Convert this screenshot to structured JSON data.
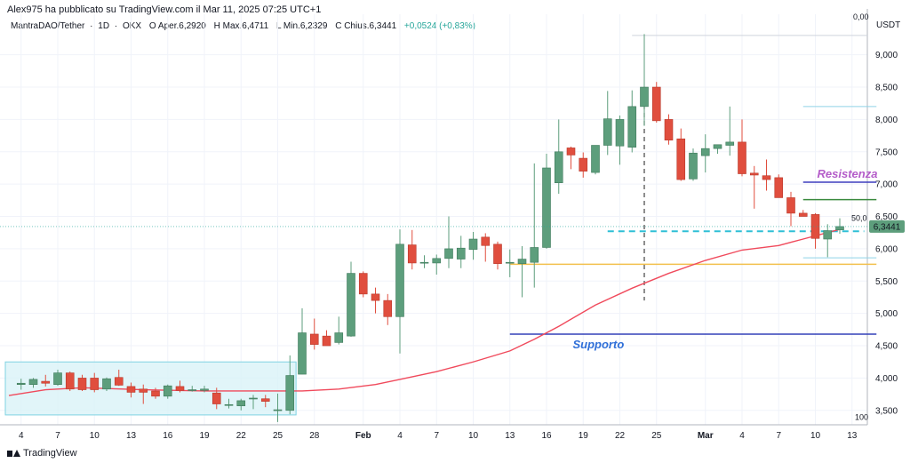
{
  "header": {
    "published": "Alex975 ha pubblicato su TradingView.com il Mar 11, 2025 07:25 UTC+1"
  },
  "symbol_bar": {
    "symbol": "MantraDAO/Tether",
    "interval": "1D",
    "exchange": "OKX",
    "open_label": "O",
    "open_value": "Aper.6,2920",
    "high_label": "H",
    "high_value": "Max.6,4711",
    "low_label": "L",
    "low_value": "Min.6,2329",
    "close_label": "C",
    "close_value": "Chius.6,3441",
    "change_value": "+0,0524 (+0,83%)"
  },
  "footer": {
    "brand": "TradingView"
  },
  "colors": {
    "up": "#5d9e7c",
    "down": "#e04e3e",
    "ma": "#f04a5c",
    "resistance_text": "#b45cc9",
    "resistance_line": "#3d3dbd",
    "support_text": "#2f6fd8",
    "support_line": "#3340b8",
    "yellow_line": "#f2c04e",
    "green_line": "#3a8a3e",
    "cyan_dash": "#2fbfd6",
    "box_fill": "#d9f3f7",
    "box_stroke": "#7fd2e2"
  },
  "chart_data": {
    "type": "candlestick",
    "title": "MantraDAO/Tether · 1D · OKX",
    "y_axis_unit": "USDT",
    "ylim": [
      3250,
      9600
    ],
    "y_ticks": [
      "3,500",
      "4,000",
      "4,500",
      "5,000",
      "5,500",
      "6,000",
      "6,500",
      "7,000",
      "7,500",
      "8,000",
      "8,500",
      "9,000"
    ],
    "y_tick_values": [
      3500,
      4000,
      4500,
      5000,
      5500,
      6000,
      6500,
      7000,
      7500,
      8000,
      8500,
      9000
    ],
    "x_ticks": [
      "4",
      "7",
      "10",
      "13",
      "16",
      "19",
      "22",
      "25",
      "28",
      "Feb",
      "4",
      "7",
      "10",
      "13",
      "16",
      "19",
      "22",
      "25",
      "Mar",
      "4",
      "7",
      "10",
      "13"
    ],
    "x_tick_bold": [
      "Feb",
      "Mar"
    ],
    "x_tick_index": [
      0,
      3,
      6,
      9,
      12,
      15,
      18,
      21,
      24,
      28,
      31,
      34,
      37,
      40,
      43,
      46,
      49,
      52,
      56,
      59,
      62,
      65,
      68
    ],
    "first_index": -1,
    "last_index": 70,
    "candles": [
      {
        "o": 3900,
        "h": 3990,
        "l": 3820,
        "c": 3920
      },
      {
        "o": 3900,
        "h": 4000,
        "l": 3850,
        "c": 3980
      },
      {
        "o": 3950,
        "h": 4050,
        "l": 3870,
        "c": 3920
      },
      {
        "o": 3900,
        "h": 4130,
        "l": 3880,
        "c": 4080
      },
      {
        "o": 4080,
        "h": 4100,
        "l": 3800,
        "c": 3830
      },
      {
        "o": 4000,
        "h": 4050,
        "l": 3800,
        "c": 3820
      },
      {
        "o": 4000,
        "h": 4080,
        "l": 3780,
        "c": 3820
      },
      {
        "o": 3830,
        "h": 4010,
        "l": 3800,
        "c": 3990
      },
      {
        "o": 4010,
        "h": 4130,
        "l": 3880,
        "c": 3890
      },
      {
        "o": 3870,
        "h": 3930,
        "l": 3700,
        "c": 3780
      },
      {
        "o": 3830,
        "h": 3900,
        "l": 3600,
        "c": 3780
      },
      {
        "o": 3800,
        "h": 3850,
        "l": 3680,
        "c": 3720
      },
      {
        "o": 3720,
        "h": 3900,
        "l": 3680,
        "c": 3880
      },
      {
        "o": 3870,
        "h": 3960,
        "l": 3780,
        "c": 3810
      },
      {
        "o": 3820,
        "h": 3880,
        "l": 3790,
        "c": 3820
      },
      {
        "o": 3810,
        "h": 3880,
        "l": 3780,
        "c": 3830
      },
      {
        "o": 3770,
        "h": 3850,
        "l": 3520,
        "c": 3600
      },
      {
        "o": 3580,
        "h": 3680,
        "l": 3530,
        "c": 3590
      },
      {
        "o": 3570,
        "h": 3680,
        "l": 3500,
        "c": 3650
      },
      {
        "o": 3680,
        "h": 3740,
        "l": 3520,
        "c": 3690
      },
      {
        "o": 3680,
        "h": 3740,
        "l": 3550,
        "c": 3640
      },
      {
        "o": 3510,
        "h": 3760,
        "l": 3320,
        "c": 3510
      },
      {
        "o": 3500,
        "h": 4350,
        "l": 3440,
        "c": 4040
      },
      {
        "o": 4060,
        "h": 5080,
        "l": 4060,
        "c": 4700
      },
      {
        "o": 4680,
        "h": 4920,
        "l": 4440,
        "c": 4520
      },
      {
        "o": 4650,
        "h": 4740,
        "l": 4500,
        "c": 4500
      },
      {
        "o": 4550,
        "h": 4950,
        "l": 4520,
        "c": 4700
      },
      {
        "o": 4650,
        "h": 5800,
        "l": 4640,
        "c": 5620
      },
      {
        "o": 5620,
        "h": 5650,
        "l": 5250,
        "c": 5300
      },
      {
        "o": 5300,
        "h": 5400,
        "l": 5000,
        "c": 5200
      },
      {
        "o": 5200,
        "h": 5300,
        "l": 4820,
        "c": 4950
      },
      {
        "o": 4950,
        "h": 6300,
        "l": 4380,
        "c": 6070
      },
      {
        "o": 6060,
        "h": 6290,
        "l": 5680,
        "c": 5780
      },
      {
        "o": 5780,
        "h": 5900,
        "l": 5700,
        "c": 5790
      },
      {
        "o": 5780,
        "h": 5910,
        "l": 5600,
        "c": 5850
      },
      {
        "o": 5850,
        "h": 6500,
        "l": 5700,
        "c": 6000
      },
      {
        "o": 5840,
        "h": 6200,
        "l": 5700,
        "c": 6010
      },
      {
        "o": 5990,
        "h": 6260,
        "l": 5830,
        "c": 6150
      },
      {
        "o": 6180,
        "h": 6240,
        "l": 5800,
        "c": 6050
      },
      {
        "o": 6070,
        "h": 6110,
        "l": 5680,
        "c": 5770
      },
      {
        "o": 5780,
        "h": 5990,
        "l": 5560,
        "c": 5790
      },
      {
        "o": 5770,
        "h": 6040,
        "l": 5250,
        "c": 5840
      },
      {
        "o": 5790,
        "h": 7320,
        "l": 5400,
        "c": 6020
      },
      {
        "o": 6020,
        "h": 7470,
        "l": 6000,
        "c": 7250
      },
      {
        "o": 7020,
        "h": 8000,
        "l": 6850,
        "c": 7500
      },
      {
        "o": 7560,
        "h": 7580,
        "l": 7230,
        "c": 7450
      },
      {
        "o": 7400,
        "h": 7490,
        "l": 7100,
        "c": 7200
      },
      {
        "o": 7180,
        "h": 7600,
        "l": 7150,
        "c": 7600
      },
      {
        "o": 7600,
        "h": 8440,
        "l": 7450,
        "c": 8010
      },
      {
        "o": 7590,
        "h": 8060,
        "l": 7300,
        "c": 8000
      },
      {
        "o": 7570,
        "h": 8450,
        "l": 7490,
        "c": 8200
      },
      {
        "o": 8200,
        "h": 9320,
        "l": 7900,
        "c": 8500
      },
      {
        "o": 8500,
        "h": 8580,
        "l": 7950,
        "c": 7980
      },
      {
        "o": 8000,
        "h": 8080,
        "l": 7610,
        "c": 7680
      },
      {
        "o": 7700,
        "h": 7860,
        "l": 7050,
        "c": 7070
      },
      {
        "o": 7080,
        "h": 7550,
        "l": 7050,
        "c": 7480
      },
      {
        "o": 7440,
        "h": 7770,
        "l": 7180,
        "c": 7550
      },
      {
        "o": 7550,
        "h": 7610,
        "l": 7470,
        "c": 7610
      },
      {
        "o": 7600,
        "h": 8200,
        "l": 7440,
        "c": 7650
      },
      {
        "o": 7650,
        "h": 8000,
        "l": 7120,
        "c": 7160
      },
      {
        "o": 7170,
        "h": 7280,
        "l": 6620,
        "c": 7140
      },
      {
        "o": 7130,
        "h": 7380,
        "l": 6900,
        "c": 7070
      },
      {
        "o": 7100,
        "h": 7150,
        "l": 6790,
        "c": 6790
      },
      {
        "o": 6790,
        "h": 6880,
        "l": 6350,
        "c": 6550
      },
      {
        "o": 6550,
        "h": 6600,
        "l": 6500,
        "c": 6500
      },
      {
        "o": 6530,
        "h": 6550,
        "l": 6000,
        "c": 6160
      },
      {
        "o": 6150,
        "h": 6380,
        "l": 5870,
        "c": 6280
      },
      {
        "o": 6292,
        "h": 6471,
        "l": 6233,
        "c": 6344
      }
    ],
    "ma_series": [
      [
        -1,
        3730
      ],
      [
        2,
        3820
      ],
      [
        5,
        3850
      ],
      [
        10,
        3820
      ],
      [
        15,
        3800
      ],
      [
        20,
        3800
      ],
      [
        23,
        3800
      ],
      [
        26,
        3830
      ],
      [
        29,
        3900
      ],
      [
        31,
        3980
      ],
      [
        34,
        4100
      ],
      [
        37,
        4250
      ],
      [
        40,
        4420
      ],
      [
        42,
        4600
      ],
      [
        44,
        4800
      ],
      [
        47,
        5130
      ],
      [
        50,
        5390
      ],
      [
        53,
        5620
      ],
      [
        56,
        5820
      ],
      [
        59,
        5980
      ],
      [
        62,
        6050
      ],
      [
        64,
        6150
      ],
      [
        67,
        6300
      ]
    ],
    "lines": {
      "support": {
        "label": "Supporto",
        "value": 4680,
        "from_index": 40,
        "to_index": 70
      },
      "resistance": {
        "label": "Resistenza",
        "value": 7030,
        "from_index": 64,
        "to_index": 70
      },
      "yellow_level": {
        "value": 5760,
        "from_index": 40,
        "to_index": 70
      },
      "green_level": {
        "value": 6760,
        "from_index": 64,
        "to_index": 70
      },
      "cyan_dashed": {
        "value": 6270,
        "from_index": 48,
        "to_index": 69
      },
      "light_top": {
        "value": 8200,
        "from_index": 64,
        "to_index": 70
      },
      "light_bottom": {
        "value": 5860,
        "from_index": 64,
        "to_index": 70
      },
      "vertical_dashed": {
        "index": 51,
        "from": 5200,
        "to": 8350
      }
    },
    "accum_box": {
      "from_index": -1,
      "to_index": 22.5,
      "low": 3430,
      "high": 4250
    },
    "price_tag": "6,3441",
    "price_value": 6344,
    "fib_label_50": "50,0",
    "top_label": "0,00",
    "bottom_label": "100"
  }
}
